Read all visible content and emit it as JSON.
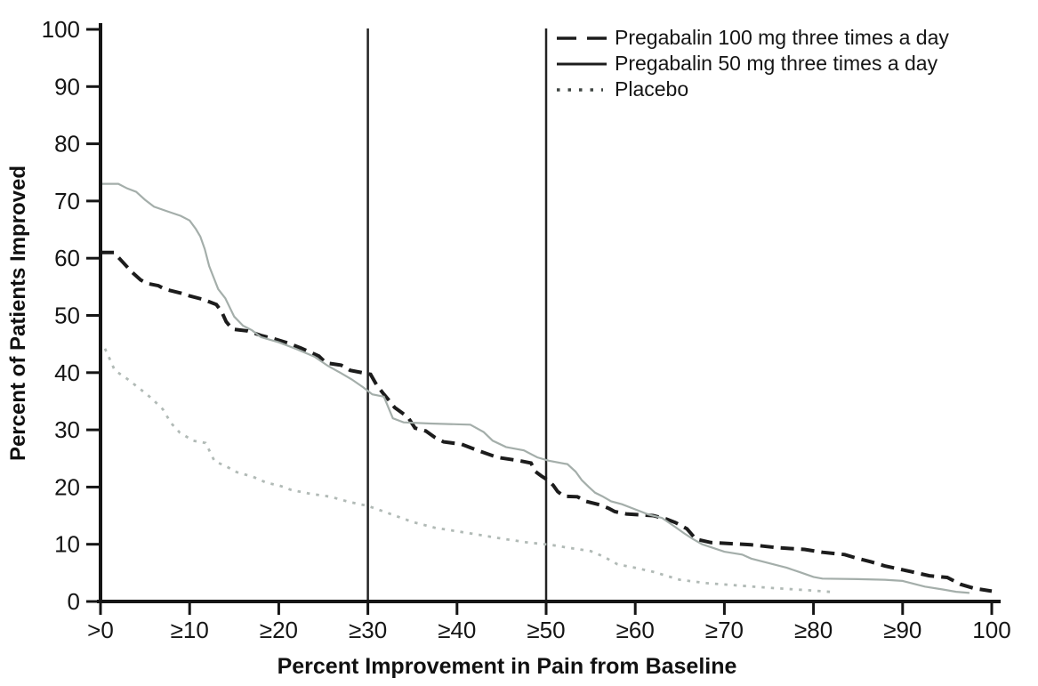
{
  "chart_data": {
    "type": "line",
    "title": "",
    "xlabel": "Percent Improvement in Pain from Baseline",
    "ylabel": "Percent of Patients Improved",
    "xlim": [
      0,
      100
    ],
    "ylim": [
      0,
      100
    ],
    "grid": false,
    "legend_position": "top-right-inside",
    "background": "#ffffff",
    "axis_color": "#151515",
    "reference_lines_x": [
      30,
      50
    ],
    "reference_line_color": "#222222",
    "x_ticks": [
      0,
      10,
      20,
      30,
      40,
      50,
      60,
      70,
      80,
      90,
      100
    ],
    "x_tick_labels": [
      ">0",
      "≥10",
      "≥20",
      "≥30",
      "≥40",
      "≥50",
      "≥60",
      "≥70",
      "≥80",
      "≥90",
      "100"
    ],
    "y_ticks": [
      0,
      10,
      20,
      30,
      40,
      50,
      60,
      70,
      80,
      90,
      100
    ],
    "y_tick_labels": [
      "0",
      "10",
      "20",
      "30",
      "40",
      "50",
      "60",
      "70",
      "80",
      "90",
      "100"
    ],
    "series": [
      {
        "id": "pregabalin-100",
        "name": "Pregabalin 100 mg three times a day",
        "style": "dashed",
        "color": "#1c1c1c",
        "legend_color": "#1c1c1c",
        "width": 4,
        "points": [
          [
            0,
            61
          ],
          [
            1.5,
            61
          ],
          [
            2.5,
            59.3
          ],
          [
            3.5,
            57.6
          ],
          [
            4.5,
            56.2
          ],
          [
            5.2,
            55.6
          ],
          [
            6.5,
            55.2
          ],
          [
            7.2,
            54.6
          ],
          [
            9,
            53.9
          ],
          [
            10,
            53.4
          ],
          [
            11.5,
            52.8
          ],
          [
            13,
            51.9
          ],
          [
            13.6,
            50.6
          ],
          [
            14.1,
            48.9
          ],
          [
            14.8,
            47.6
          ],
          [
            16.5,
            47.3
          ],
          [
            18,
            46.5
          ],
          [
            19.5,
            45.9
          ],
          [
            21,
            45.2
          ],
          [
            22.5,
            44.3
          ],
          [
            23.5,
            43.6
          ],
          [
            24.5,
            42.9
          ],
          [
            25.3,
            41.7
          ],
          [
            27,
            41.3
          ],
          [
            28,
            40.4
          ],
          [
            30.3,
            39.7
          ],
          [
            31,
            37.8
          ],
          [
            31.7,
            36.4
          ],
          [
            32.3,
            35.3
          ],
          [
            33,
            33.9
          ],
          [
            33.8,
            33
          ],
          [
            34.5,
            32.2
          ],
          [
            35.3,
            30.3
          ],
          [
            36.5,
            29.8
          ],
          [
            37.5,
            28.7
          ],
          [
            38.5,
            27.9
          ],
          [
            40.5,
            27.5
          ],
          [
            42.5,
            26.3
          ],
          [
            44.5,
            25.2
          ],
          [
            47,
            24.6
          ],
          [
            48.3,
            24.2
          ],
          [
            48.8,
            22.7
          ],
          [
            49.5,
            21.9
          ],
          [
            50.3,
            21.1
          ],
          [
            50.8,
            20.3
          ],
          [
            51.3,
            19.2
          ],
          [
            52,
            18.4
          ],
          [
            53.5,
            18.3
          ],
          [
            54.5,
            17.5
          ],
          [
            56,
            16.9
          ],
          [
            57,
            16.3
          ],
          [
            57.7,
            15.7
          ],
          [
            59,
            15.3
          ],
          [
            62,
            15
          ],
          [
            63.5,
            14.4
          ],
          [
            64.5,
            13.8
          ],
          [
            65.8,
            12.7
          ],
          [
            66.8,
            10.9
          ],
          [
            68.5,
            10.3
          ],
          [
            71,
            10.1
          ],
          [
            73,
            9.9
          ],
          [
            76,
            9.4
          ],
          [
            79,
            9.1
          ],
          [
            81,
            8.6
          ],
          [
            83.5,
            8.2
          ],
          [
            85,
            7.5
          ],
          [
            86.5,
            6.9
          ],
          [
            88,
            6.2
          ],
          [
            89.5,
            5.7
          ],
          [
            91,
            5.2
          ],
          [
            93,
            4.5
          ],
          [
            95,
            4.2
          ],
          [
            96.5,
            3
          ],
          [
            98,
            2.3
          ],
          [
            100,
            1.8
          ]
        ]
      },
      {
        "id": "pregabalin-50",
        "name": "Pregabalin 50 mg three times a day",
        "style": "solid",
        "color": "#a4aeaa",
        "legend_color": "#1c1c1c",
        "width": 2.2,
        "points": [
          [
            0,
            73
          ],
          [
            2,
            73
          ],
          [
            3,
            72.2
          ],
          [
            4,
            71.6
          ],
          [
            5,
            70.2
          ],
          [
            6,
            69
          ],
          [
            7.5,
            68.2
          ],
          [
            9,
            67.4
          ],
          [
            10,
            66.6
          ],
          [
            10.7,
            65.1
          ],
          [
            11.2,
            63.8
          ],
          [
            11.7,
            61.6
          ],
          [
            12.2,
            58.6
          ],
          [
            12.7,
            56.6
          ],
          [
            13.2,
            54.6
          ],
          [
            14,
            53
          ],
          [
            15,
            49.8
          ],
          [
            16,
            48.2
          ],
          [
            17,
            47.4
          ],
          [
            18,
            46.2
          ],
          [
            20,
            45.3
          ],
          [
            22,
            44.1
          ],
          [
            24,
            42.8
          ],
          [
            25.5,
            41.2
          ],
          [
            27,
            39.9
          ],
          [
            28.2,
            38.8
          ],
          [
            29.5,
            37.4
          ],
          [
            30.5,
            36.2
          ],
          [
            31.8,
            35.8
          ],
          [
            32.8,
            32
          ],
          [
            34,
            31.3
          ],
          [
            37,
            31.1
          ],
          [
            41.5,
            30.9
          ],
          [
            43,
            29.6
          ],
          [
            44,
            28.1
          ],
          [
            45.5,
            27
          ],
          [
            47.5,
            26.4
          ],
          [
            49,
            25.2
          ],
          [
            50.3,
            24.6
          ],
          [
            52.4,
            24
          ],
          [
            53.3,
            22.7
          ],
          [
            54,
            21.2
          ],
          [
            54.8,
            20
          ],
          [
            55.5,
            19
          ],
          [
            56.3,
            18.4
          ],
          [
            57.3,
            17.5
          ],
          [
            58.5,
            17
          ],
          [
            60,
            16.1
          ],
          [
            61.5,
            15.2
          ],
          [
            63,
            14.6
          ],
          [
            64.5,
            13
          ],
          [
            65.5,
            11.9
          ],
          [
            66.5,
            10.9
          ],
          [
            67.5,
            10
          ],
          [
            70,
            8.7
          ],
          [
            72,
            8.2
          ],
          [
            73,
            7.5
          ],
          [
            75,
            6.7
          ],
          [
            77,
            5.9
          ],
          [
            78.5,
            5.1
          ],
          [
            80,
            4.3
          ],
          [
            81,
            4
          ],
          [
            85,
            3.9
          ],
          [
            88,
            3.8
          ],
          [
            90,
            3.6
          ],
          [
            92.5,
            2.6
          ],
          [
            94.5,
            2.1
          ],
          [
            96,
            1.7
          ],
          [
            97.5,
            1.5
          ]
        ]
      },
      {
        "id": "placebo",
        "name": "Placebo",
        "style": "dotted",
        "color": "#b1bab6",
        "legend_color": "#3f4542",
        "width": 2.8,
        "points": [
          [
            0.5,
            44.2
          ],
          [
            1,
            42.5
          ],
          [
            1.6,
            40.4
          ],
          [
            3,
            38.9
          ],
          [
            4.4,
            37.2
          ],
          [
            5.5,
            35.8
          ],
          [
            6,
            35.1
          ],
          [
            7,
            33.6
          ],
          [
            7.9,
            31.2
          ],
          [
            8.9,
            29.5
          ],
          [
            10.4,
            28.1
          ],
          [
            11.8,
            27.7
          ],
          [
            12.8,
            24.5
          ],
          [
            14,
            23.7
          ],
          [
            15.3,
            22.6
          ],
          [
            17.1,
            21.8
          ],
          [
            18.7,
            20.7
          ],
          [
            20,
            20.3
          ],
          [
            21.4,
            19.5
          ],
          [
            23.3,
            18.9
          ],
          [
            25.8,
            18.3
          ],
          [
            27.9,
            17.4
          ],
          [
            30,
            16.7
          ],
          [
            32,
            15.6
          ],
          [
            35,
            13.9
          ],
          [
            37.5,
            12.9
          ],
          [
            41.5,
            11.9
          ],
          [
            45,
            11
          ],
          [
            48,
            10.3
          ],
          [
            50.5,
            9.9
          ],
          [
            52.5,
            9.4
          ],
          [
            55,
            8.8
          ],
          [
            56.5,
            7.8
          ],
          [
            58,
            6.5
          ],
          [
            60,
            5.9
          ],
          [
            62,
            5.2
          ],
          [
            65,
            3.8
          ],
          [
            68,
            3.2
          ],
          [
            71.5,
            2.8
          ],
          [
            75,
            2.4
          ],
          [
            78,
            2.1
          ],
          [
            80,
            1.9
          ],
          [
            82.5,
            1.6
          ]
        ]
      }
    ]
  }
}
